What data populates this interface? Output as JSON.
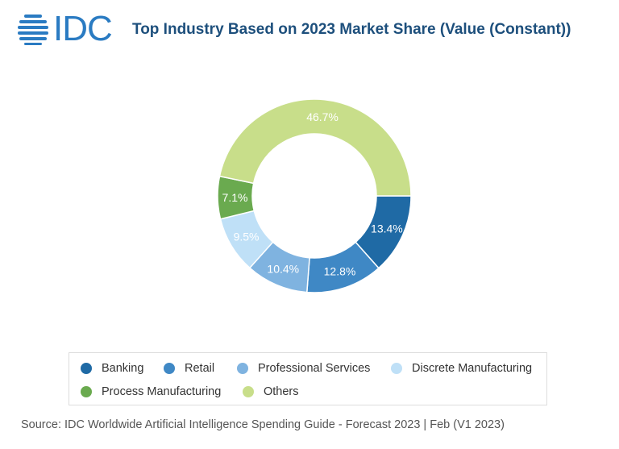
{
  "header": {
    "logo_text": "IDC",
    "title": "Top Industry Based on 2023 Market Share (Value (Constant))"
  },
  "chart_data": {
    "type": "pie",
    "variant": "donut",
    "title": "Top Industry Based on 2023 Market Share (Value (Constant))",
    "categories": [
      "Banking",
      "Retail",
      "Professional Services",
      "Discrete Manufacturing",
      "Process Manufacturing",
      "Others"
    ],
    "values": [
      13.4,
      12.8,
      10.4,
      9.5,
      7.1,
      46.7
    ],
    "labels": [
      "13.4%",
      "12.8%",
      "10.4%",
      "9.5%",
      "7.1%",
      "46.7%"
    ],
    "colors": [
      "#1f6aa5",
      "#3f88c5",
      "#7fb3e0",
      "#bfe0f7",
      "#6aaa4f",
      "#c8de8a"
    ],
    "legend_position": "bottom"
  },
  "source": "Source: IDC Worldwide Artificial Intelligence Spending Guide - Forecast 2023 | Feb (V1 2023)"
}
